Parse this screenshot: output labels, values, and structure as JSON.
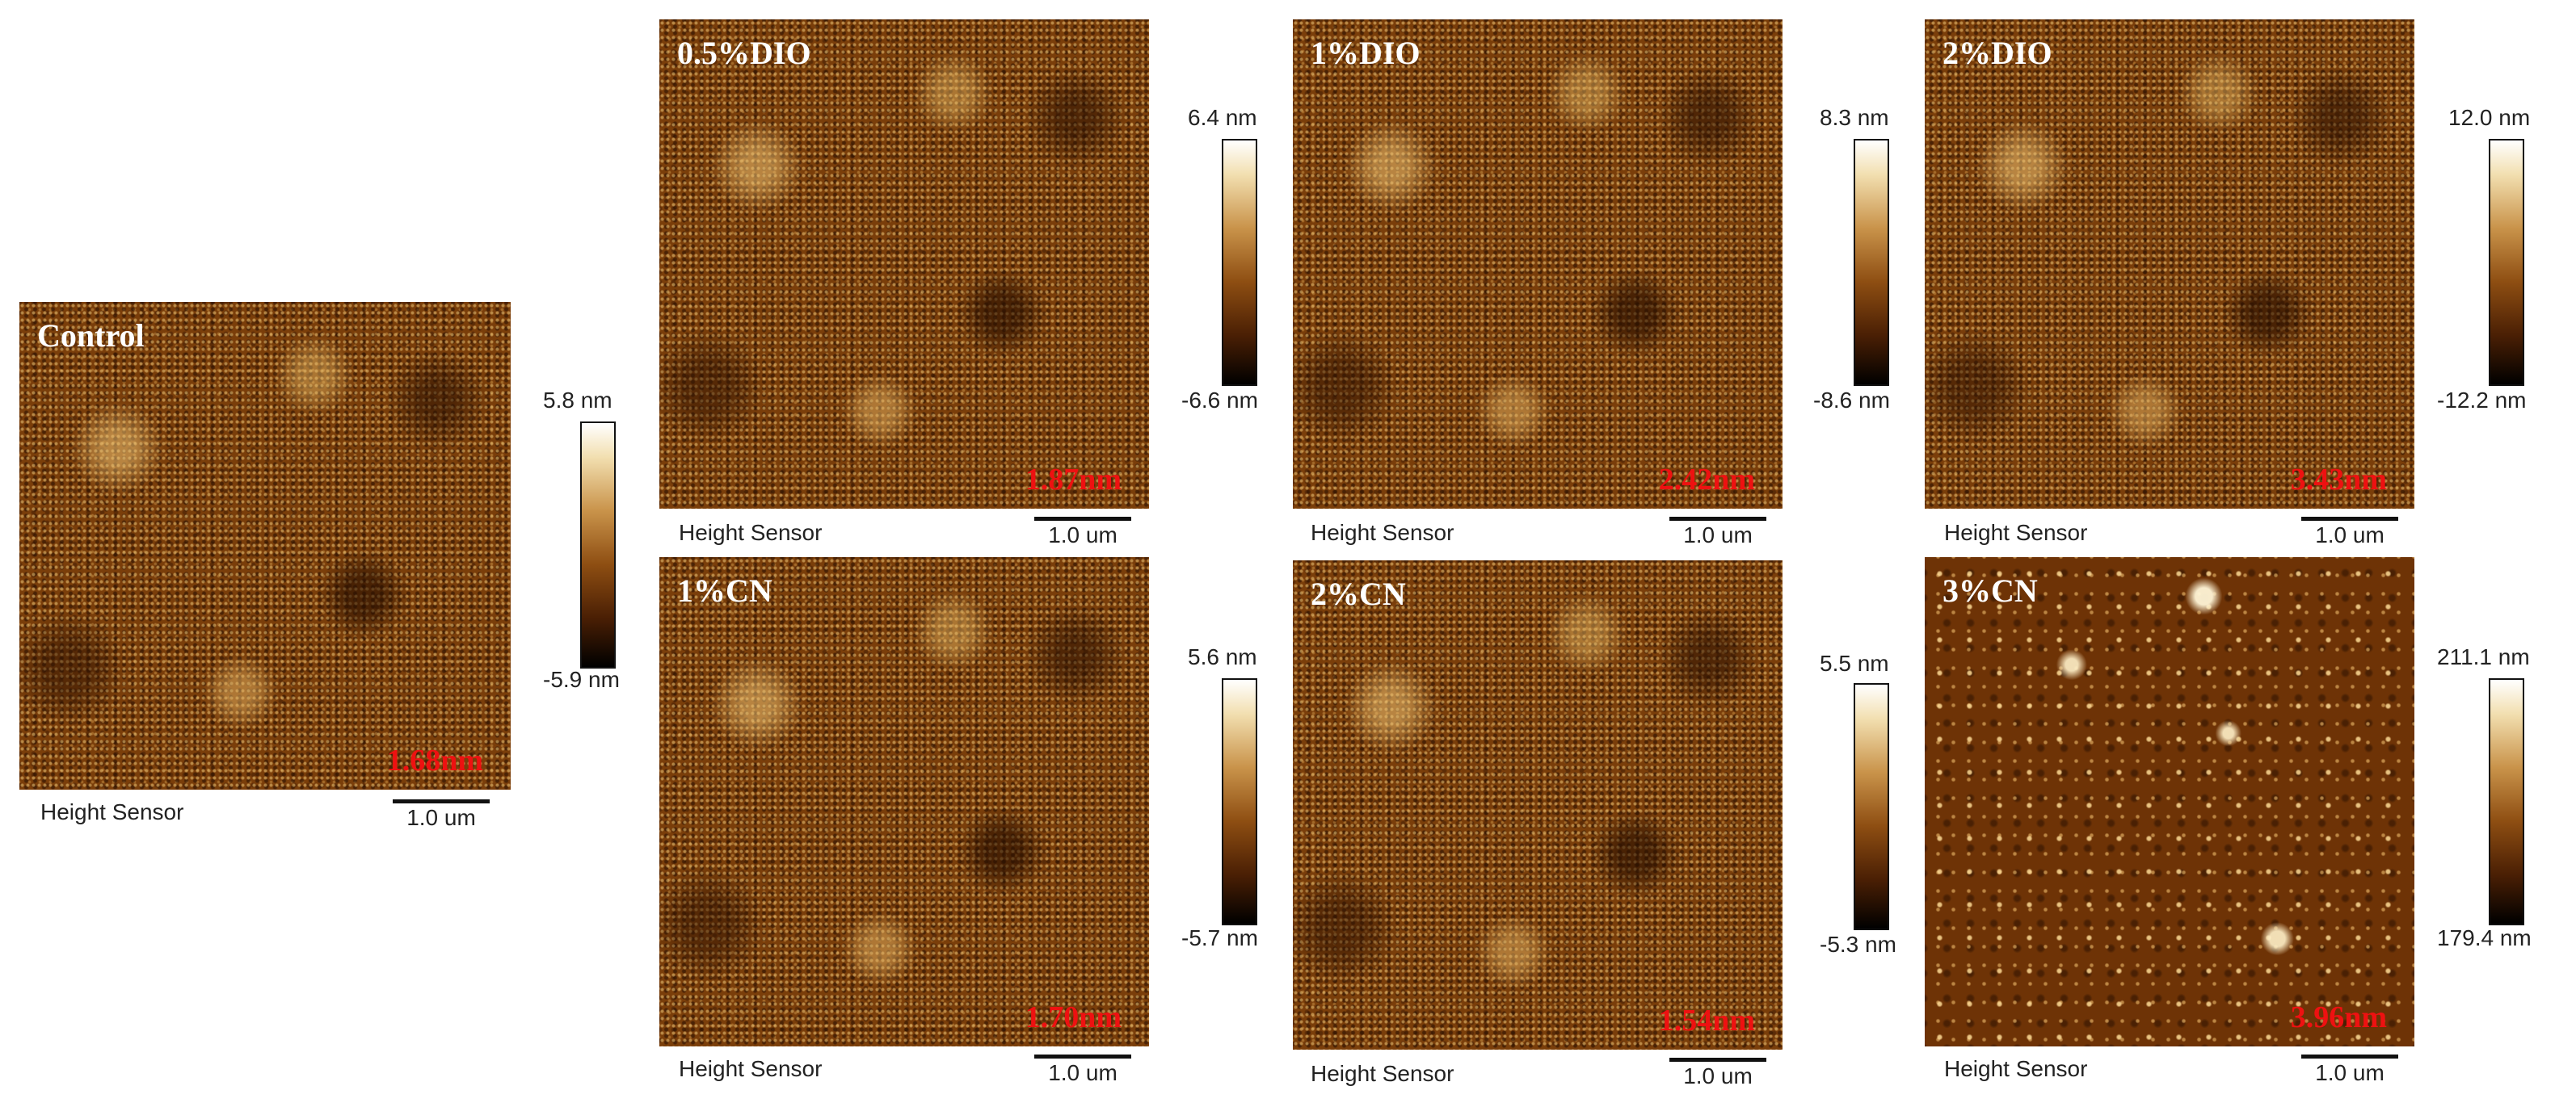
{
  "caption_label": "Height Sensor",
  "scale_label": "1.0 um",
  "colors": {
    "label": "#ffffff",
    "roughness": "#ee1111",
    "colormap": [
      "#000000",
      "#4a1f04",
      "#8e4e12",
      "#c9934a",
      "#f2dfb0",
      "#ffffff"
    ]
  },
  "panels": [
    {
      "id": "control",
      "label": "Control",
      "roughness": "1.68nm"
    },
    {
      "id": "dio05",
      "label": "0.5%DIO",
      "roughness": "1.87nm"
    },
    {
      "id": "dio1",
      "label": "1%DIO",
      "roughness": "2.42nm"
    },
    {
      "id": "dio2",
      "label": "2%DIO",
      "roughness": "3.43nm"
    },
    {
      "id": "cn1",
      "label": "1%CN",
      "roughness": "1.70nm"
    },
    {
      "id": "cn2",
      "label": "2%CN",
      "roughness": "1.54nm"
    },
    {
      "id": "cn3",
      "label": "3%CN",
      "roughness": "3.96nm"
    }
  ],
  "colorbars": [
    {
      "id": "control",
      "max": "5.8 nm",
      "min": "-5.9 nm"
    },
    {
      "id": "dio05",
      "max": "6.4 nm",
      "min": "-6.6 nm"
    },
    {
      "id": "dio1",
      "max": "8.3 nm",
      "min": "-8.6 nm"
    },
    {
      "id": "dio2",
      "max": "12.0 nm",
      "min": "-12.2 nm"
    },
    {
      "id": "cn1",
      "max": "5.6 nm",
      "min": "-5.7 nm"
    },
    {
      "id": "cn2",
      "max": "5.5 nm",
      "min": "-5.3 nm"
    },
    {
      "id": "cn3",
      "max": "211.1 nm",
      "min": "179.4 nm"
    }
  ]
}
